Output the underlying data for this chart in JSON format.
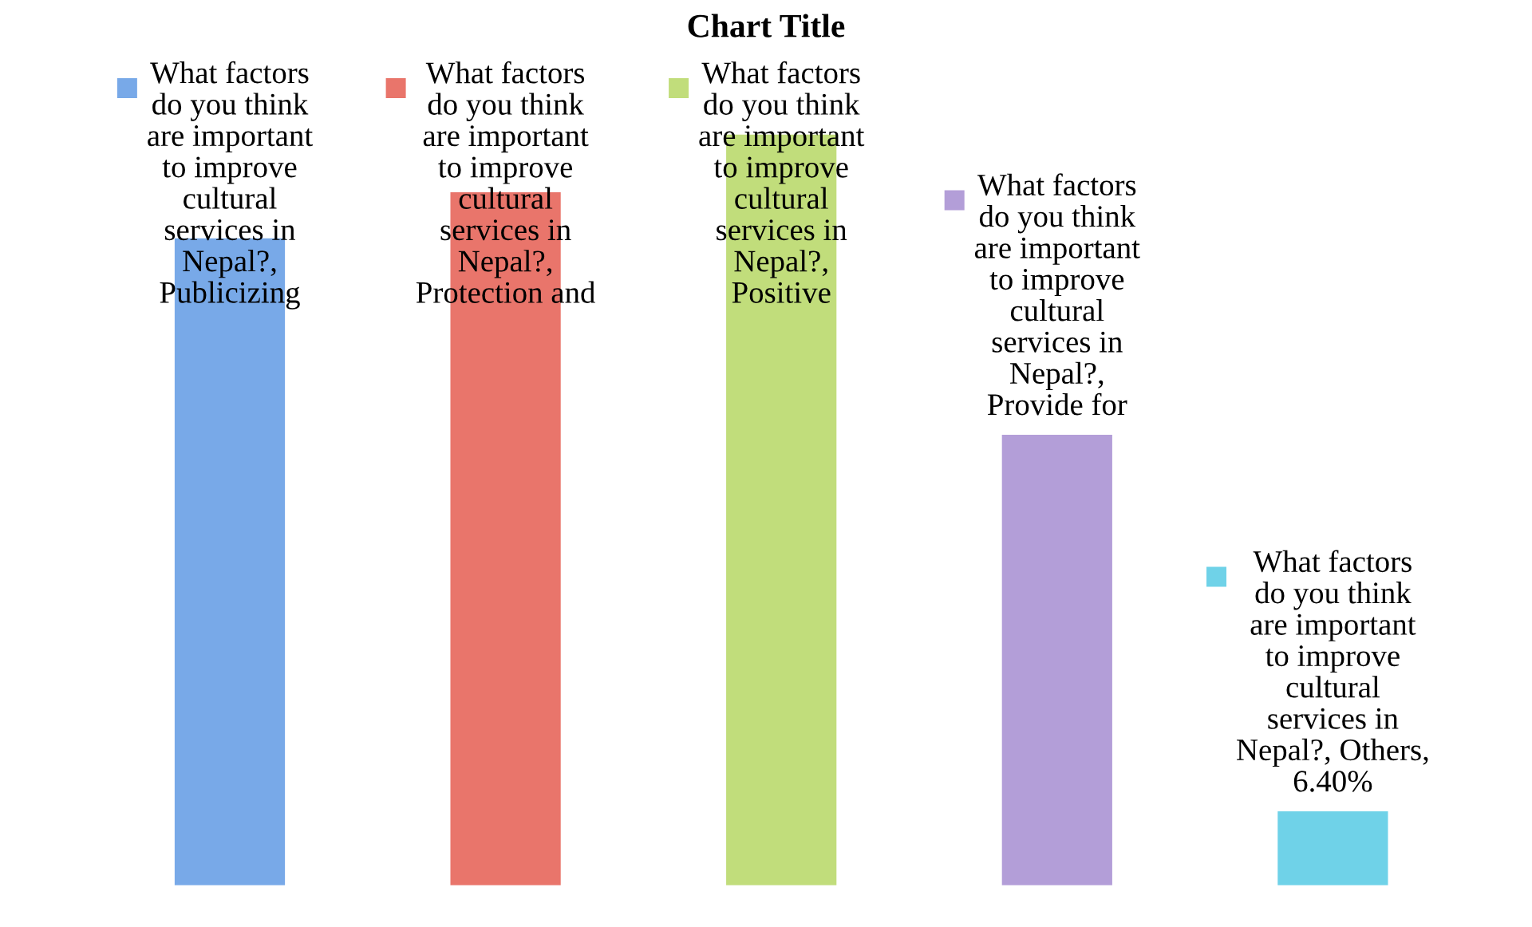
{
  "chart_data": {
    "type": "bar",
    "title": "Chart Title",
    "categories": [
      null,
      null,
      null,
      null,
      null
    ],
    "values": [
      56,
      60,
      65,
      39,
      6.4
    ],
    "colors": [
      "#78a9e8",
      "#e9756b",
      "#c1dd7b",
      "#b39ed8",
      "#6fd2e8"
    ],
    "value_labels": [
      "What factors\ndo you think\nare important\nto improve\ncultural\nservices in\nNepal?,\nPublicizing",
      "What factors\ndo you think\nare important\nto improve\ncultural\nservices in\nNepal?,\nProtection and",
      "What factors\ndo you think\nare important\nto improve\ncultural\nservices in\nNepal?,\nPositive",
      "What factors\ndo you think\nare important\nto improve\ncultural\nservices in\nNepal?,\nProvide for",
      "What factors\ndo you think\nare important\nto improve\ncultural\nservices in\nNepal?, Others,\n6.40%"
    ]
  }
}
